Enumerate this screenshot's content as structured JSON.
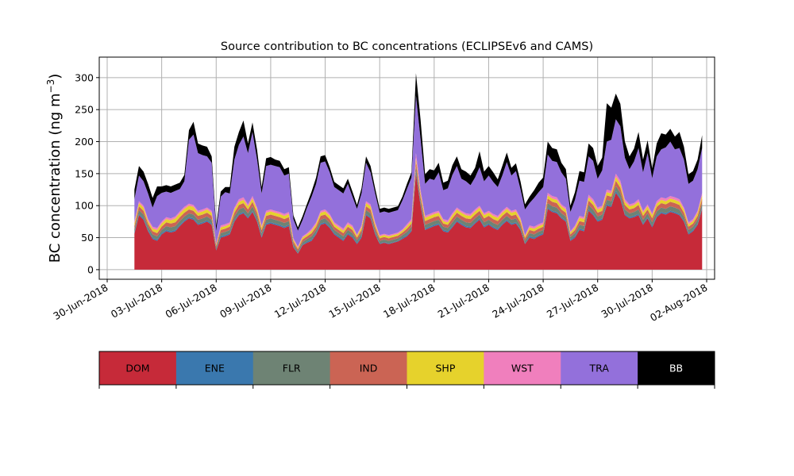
{
  "chart_data": {
    "type": "area",
    "stacked": true,
    "title": "Source contribution to BC concentrations (ECLIPSEv6 and CAMS)",
    "ylabel_main": "BC concentration (ng m",
    "ylabel_exp": "−3",
    "ylabel_close": ")",
    "xlabel": "",
    "grid": true,
    "ylim": [
      -15,
      332
    ],
    "xlim": [
      "2018-06-30",
      "2018-08-02"
    ],
    "yticks": [
      0,
      50,
      100,
      150,
      200,
      250,
      300
    ],
    "ytick_labels": [
      "0",
      "50",
      "100",
      "150",
      "200",
      "250",
      "300"
    ],
    "xticks": [
      "2018-06-30",
      "2018-07-03",
      "2018-07-06",
      "2018-07-09",
      "2018-07-12",
      "2018-07-15",
      "2018-07-18",
      "2018-07-21",
      "2018-07-24",
      "2018-07-27",
      "2018-07-30",
      "2018-08-02"
    ],
    "xtick_labels": [
      "30-Jun-2018",
      "03-Jul-2018",
      "06-Jul-2018",
      "09-Jul-2018",
      "12-Jul-2018",
      "15-Jul-2018",
      "18-Jul-2018",
      "21-Jul-2018",
      "24-Jul-2018",
      "27-Jul-2018",
      "30-Jul-2018",
      "02-Aug-2018"
    ],
    "x": [
      "2018-07-01 12:00",
      "2018-07-01 18:00",
      "2018-07-02 00:00",
      "2018-07-02 06:00",
      "2018-07-02 12:00",
      "2018-07-02 18:00",
      "2018-07-03 00:00",
      "2018-07-03 06:00",
      "2018-07-03 12:00",
      "2018-07-03 18:00",
      "2018-07-04 00:00",
      "2018-07-04 06:00",
      "2018-07-04 12:00",
      "2018-07-04 18:00",
      "2018-07-05 00:00",
      "2018-07-05 06:00",
      "2018-07-05 12:00",
      "2018-07-05 18:00",
      "2018-07-06 00:00",
      "2018-07-06 06:00",
      "2018-07-06 12:00",
      "2018-07-06 18:00",
      "2018-07-07 00:00",
      "2018-07-07 06:00",
      "2018-07-07 12:00",
      "2018-07-07 18:00",
      "2018-07-08 00:00",
      "2018-07-08 06:00",
      "2018-07-08 12:00",
      "2018-07-08 18:00",
      "2018-07-09 00:00",
      "2018-07-09 06:00",
      "2018-07-09 12:00",
      "2018-07-09 18:00",
      "2018-07-10 00:00",
      "2018-07-10 06:00",
      "2018-07-10 12:00",
      "2018-07-10 18:00",
      "2018-07-11 00:00",
      "2018-07-11 06:00",
      "2018-07-11 12:00",
      "2018-07-11 18:00",
      "2018-07-12 00:00",
      "2018-07-12 06:00",
      "2018-07-12 12:00",
      "2018-07-12 18:00",
      "2018-07-13 00:00",
      "2018-07-13 06:00",
      "2018-07-13 12:00",
      "2018-07-13 18:00",
      "2018-07-14 00:00",
      "2018-07-14 06:00",
      "2018-07-14 12:00",
      "2018-07-14 18:00",
      "2018-07-15 00:00",
      "2018-07-15 06:00",
      "2018-07-15 12:00",
      "2018-07-15 18:00",
      "2018-07-16 00:00",
      "2018-07-16 06:00",
      "2018-07-16 12:00",
      "2018-07-16 18:00",
      "2018-07-17 00:00",
      "2018-07-17 06:00",
      "2018-07-17 12:00",
      "2018-07-17 18:00",
      "2018-07-18 00:00",
      "2018-07-18 06:00",
      "2018-07-18 12:00",
      "2018-07-18 18:00",
      "2018-07-19 00:00",
      "2018-07-19 06:00",
      "2018-07-19 12:00",
      "2018-07-19 18:00",
      "2018-07-20 00:00",
      "2018-07-20 06:00",
      "2018-07-20 12:00",
      "2018-07-20 18:00",
      "2018-07-21 00:00",
      "2018-07-21 06:00",
      "2018-07-21 12:00",
      "2018-07-21 18:00",
      "2018-07-22 00:00",
      "2018-07-22 06:00",
      "2018-07-22 12:00",
      "2018-07-22 18:00",
      "2018-07-23 00:00",
      "2018-07-23 06:00",
      "2018-07-23 12:00",
      "2018-07-23 18:00",
      "2018-07-24 00:00",
      "2018-07-24 06:00",
      "2018-07-24 12:00",
      "2018-07-24 18:00",
      "2018-07-25 00:00",
      "2018-07-25 06:00",
      "2018-07-25 12:00",
      "2018-07-25 18:00",
      "2018-07-26 00:00",
      "2018-07-26 06:00",
      "2018-07-26 12:00",
      "2018-07-26 18:00",
      "2018-07-27 00:00",
      "2018-07-27 06:00",
      "2018-07-27 12:00",
      "2018-07-27 18:00",
      "2018-07-28 00:00",
      "2018-07-28 06:00",
      "2018-07-28 12:00",
      "2018-07-28 18:00",
      "2018-07-29 00:00",
      "2018-07-29 06:00",
      "2018-07-29 12:00",
      "2018-07-29 18:00",
      "2018-07-30 00:00",
      "2018-07-30 06:00",
      "2018-07-30 12:00",
      "2018-07-30 18:00",
      "2018-07-31 00:00",
      "2018-07-31 06:00",
      "2018-07-31 12:00",
      "2018-07-31 18:00",
      "2018-08-01 00:00",
      "2018-08-01 06:00",
      "2018-08-01 12:00",
      "2018-08-01 18:00"
    ],
    "series": [
      {
        "name": "DOM",
        "color": "#c62a39",
        "values": [
          56,
          85,
          78,
          60,
          48,
          45,
          55,
          60,
          58,
          60,
          68,
          75,
          80,
          78,
          70,
          72,
          75,
          70,
          30,
          50,
          52,
          55,
          75,
          85,
          88,
          80,
          90,
          75,
          50,
          70,
          72,
          70,
          68,
          65,
          68,
          35,
          25,
          38,
          42,
          45,
          55,
          70,
          72,
          65,
          55,
          50,
          45,
          55,
          50,
          40,
          50,
          85,
          80,
          55,
          40,
          42,
          40,
          42,
          44,
          48,
          52,
          60,
          150,
          100,
          62,
          65,
          68,
          70,
          60,
          58,
          66,
          75,
          70,
          66,
          65,
          72,
          78,
          66,
          70,
          65,
          62,
          70,
          76,
          70,
          72,
          62,
          40,
          50,
          48,
          52,
          55,
          95,
          90,
          88,
          80,
          75,
          45,
          50,
          62,
          60,
          92,
          85,
          75,
          78,
          100,
          98,
          120,
          110,
          85,
          80,
          82,
          85,
          70,
          80,
          66,
          82,
          88,
          86,
          90,
          88,
          85,
          75,
          55,
          60,
          70,
          95
        ]
      },
      {
        "name": "ENE",
        "color": "#3a78ae",
        "values": [
          2,
          2,
          2,
          2,
          2,
          2,
          2,
          2,
          2,
          2,
          2,
          2,
          2,
          2,
          2,
          2,
          2,
          2,
          1,
          2,
          2,
          2,
          2,
          2,
          2,
          2,
          2,
          2,
          2,
          2,
          2,
          2,
          2,
          2,
          2,
          1,
          1,
          1,
          2,
          2,
          2,
          2,
          2,
          2,
          2,
          2,
          2,
          2,
          2,
          2,
          2,
          2,
          2,
          2,
          1,
          1,
          1,
          1,
          1,
          2,
          2,
          2,
          3,
          2,
          2,
          2,
          2,
          2,
          2,
          2,
          2,
          2,
          2,
          2,
          2,
          2,
          2,
          2,
          2,
          2,
          2,
          2,
          2,
          2,
          2,
          2,
          1,
          2,
          2,
          2,
          2,
          2,
          2,
          2,
          2,
          2,
          2,
          2,
          2,
          2,
          2,
          2,
          2,
          2,
          2,
          2,
          3,
          2,
          2,
          2,
          2,
          2,
          2,
          2,
          2,
          2,
          2,
          2,
          2,
          2,
          2,
          2,
          2,
          2,
          2,
          2
        ]
      },
      {
        "name": "FLR",
        "color": "#6e8374",
        "values": [
          5,
          6,
          6,
          5,
          5,
          5,
          5,
          6,
          6,
          6,
          6,
          6,
          6,
          6,
          6,
          6,
          6,
          6,
          3,
          5,
          5,
          5,
          6,
          7,
          7,
          6,
          7,
          6,
          5,
          6,
          6,
          6,
          6,
          6,
          6,
          4,
          3,
          4,
          4,
          5,
          5,
          6,
          6,
          6,
          5,
          5,
          5,
          5,
          5,
          4,
          5,
          6,
          6,
          5,
          4,
          4,
          4,
          4,
          4,
          4,
          5,
          5,
          8,
          6,
          6,
          6,
          6,
          6,
          5,
          5,
          6,
          6,
          6,
          6,
          6,
          6,
          6,
          6,
          6,
          6,
          6,
          6,
          6,
          6,
          6,
          5,
          4,
          5,
          5,
          5,
          5,
          7,
          7,
          7,
          6,
          6,
          4,
          5,
          6,
          6,
          7,
          7,
          6,
          6,
          7,
          7,
          8,
          8,
          7,
          6,
          6,
          7,
          6,
          6,
          6,
          7,
          7,
          7,
          7,
          7,
          7,
          6,
          5,
          5,
          6,
          7
        ]
      },
      {
        "name": "IND",
        "color": "#cb6454",
        "values": [
          5,
          6,
          6,
          5,
          5,
          5,
          5,
          6,
          6,
          6,
          6,
          6,
          6,
          6,
          6,
          6,
          6,
          6,
          3,
          5,
          5,
          5,
          6,
          7,
          7,
          6,
          7,
          6,
          5,
          6,
          6,
          6,
          6,
          6,
          6,
          4,
          3,
          4,
          4,
          5,
          5,
          6,
          6,
          6,
          5,
          5,
          5,
          5,
          5,
          4,
          5,
          6,
          6,
          5,
          4,
          4,
          4,
          4,
          4,
          4,
          5,
          5,
          8,
          6,
          6,
          6,
          6,
          6,
          5,
          5,
          6,
          6,
          6,
          6,
          6,
          6,
          6,
          6,
          6,
          6,
          6,
          6,
          6,
          6,
          6,
          5,
          4,
          5,
          5,
          5,
          5,
          7,
          7,
          7,
          6,
          6,
          4,
          5,
          6,
          6,
          7,
          7,
          6,
          6,
          7,
          7,
          8,
          8,
          7,
          6,
          6,
          7,
          6,
          6,
          6,
          7,
          7,
          7,
          7,
          7,
          7,
          6,
          5,
          5,
          6,
          7
        ]
      },
      {
        "name": "SHP",
        "color": "#e6d22c",
        "values": [
          4,
          5,
          5,
          4,
          4,
          5,
          5,
          5,
          5,
          6,
          6,
          6,
          6,
          6,
          5,
          5,
          5,
          5,
          2,
          4,
          4,
          4,
          5,
          5,
          5,
          5,
          5,
          5,
          4,
          5,
          5,
          5,
          5,
          5,
          5,
          3,
          2,
          3,
          3,
          4,
          4,
          5,
          5,
          5,
          4,
          4,
          4,
          4,
          4,
          3,
          4,
          5,
          5,
          4,
          3,
          3,
          3,
          3,
          3,
          3,
          4,
          4,
          5,
          5,
          5,
          5,
          5,
          5,
          4,
          4,
          5,
          5,
          5,
          5,
          5,
          5,
          5,
          5,
          5,
          5,
          5,
          5,
          5,
          5,
          5,
          4,
          3,
          4,
          4,
          4,
          4,
          5,
          5,
          5,
          5,
          5,
          3,
          4,
          5,
          5,
          5,
          5,
          5,
          5,
          5,
          5,
          6,
          6,
          5,
          5,
          5,
          5,
          5,
          5,
          5,
          5,
          5,
          5,
          5,
          5,
          5,
          5,
          4,
          4,
          5,
          5
        ]
      },
      {
        "name": "WST",
        "color": "#f07fbd",
        "values": [
          3,
          3,
          3,
          3,
          3,
          3,
          3,
          3,
          3,
          3,
          3,
          3,
          3,
          3,
          3,
          3,
          3,
          3,
          2,
          3,
          3,
          3,
          3,
          4,
          4,
          3,
          4,
          3,
          3,
          3,
          3,
          3,
          3,
          3,
          3,
          2,
          2,
          2,
          2,
          3,
          3,
          3,
          3,
          3,
          3,
          3,
          3,
          3,
          3,
          2,
          3,
          3,
          3,
          3,
          2,
          2,
          2,
          2,
          2,
          2,
          3,
          3,
          8,
          5,
          3,
          3,
          3,
          3,
          3,
          3,
          3,
          3,
          3,
          3,
          3,
          3,
          3,
          3,
          3,
          3,
          3,
          3,
          3,
          3,
          3,
          3,
          2,
          3,
          3,
          3,
          3,
          4,
          4,
          4,
          3,
          3,
          2,
          3,
          3,
          3,
          4,
          4,
          3,
          3,
          4,
          4,
          5,
          5,
          4,
          3,
          3,
          4,
          3,
          3,
          3,
          4,
          4,
          4,
          4,
          4,
          4,
          3,
          3,
          3,
          3,
          4
        ]
      },
      {
        "name": "TRA",
        "color": "#9370db",
        "values": [
          35,
          40,
          38,
          40,
          30,
          50,
          45,
          40,
          40,
          40,
          35,
          40,
          100,
          110,
          90,
          85,
          80,
          75,
          20,
          45,
          50,
          45,
          75,
          85,
          95,
          80,
          100,
          75,
          50,
          70,
          70,
          70,
          70,
          60,
          60,
          30,
          25,
          25,
          40,
          50,
          60,
          75,
          75,
          65,
          55,
          55,
          55,
          60,
          45,
          40,
          50,
          60,
          50,
          45,
          35,
          35,
          35,
          35,
          35,
          45,
          55,
          65,
          90,
          80,
          50,
          55,
          50,
          60,
          45,
          50,
          60,
          65,
          50,
          50,
          45,
          50,
          60,
          50,
          55,
          50,
          45,
          55,
          70,
          55,
          60,
          45,
          40,
          35,
          45,
          50,
          55,
          60,
          55,
          55,
          50,
          45,
          30,
          40,
          55,
          55,
          60,
          60,
          45,
          55,
          75,
          80,
          85,
          85,
          65,
          55,
          65,
          80,
          60,
          80,
          55,
          70,
          75,
          80,
          85,
          75,
          80,
          75,
          60,
          60,
          65,
          70
        ]
      },
      {
        "name": "BB",
        "color": "#000000",
        "values": [
          15,
          15,
          15,
          15,
          15,
          15,
          10,
          10,
          10,
          10,
          10,
          10,
          15,
          20,
          15,
          15,
          15,
          10,
          8,
          8,
          8,
          10,
          20,
          20,
          25,
          15,
          15,
          15,
          10,
          12,
          12,
          10,
          10,
          10,
          10,
          6,
          5,
          6,
          6,
          8,
          10,
          10,
          10,
          8,
          8,
          8,
          8,
          8,
          8,
          6,
          8,
          10,
          10,
          8,
          6,
          6,
          6,
          6,
          6,
          6,
          8,
          8,
          35,
          30,
          15,
          15,
          15,
          15,
          12,
          12,
          15,
          15,
          15,
          15,
          15,
          15,
          25,
          15,
          15,
          15,
          12,
          15,
          15,
          12,
          12,
          12,
          8,
          10,
          12,
          15,
          15,
          20,
          20,
          20,
          15,
          15,
          10,
          12,
          15,
          15,
          20,
          20,
          20,
          20,
          60,
          50,
          40,
          35,
          25,
          20,
          20,
          25,
          20,
          20,
          15,
          20,
          25,
          20,
          20,
          20,
          25,
          20,
          15,
          15,
          15,
          20
        ]
      }
    ],
    "legend_labels": [
      "DOM",
      "ENE",
      "FLR",
      "IND",
      "SHP",
      "WST",
      "TRA",
      "BB"
    ],
    "legend_colors": [
      "#c62a39",
      "#3a78ae",
      "#6e8374",
      "#cb6454",
      "#e6d22c",
      "#f07fbd",
      "#9370db",
      "#000000"
    ],
    "legend_placement": "bottom"
  }
}
